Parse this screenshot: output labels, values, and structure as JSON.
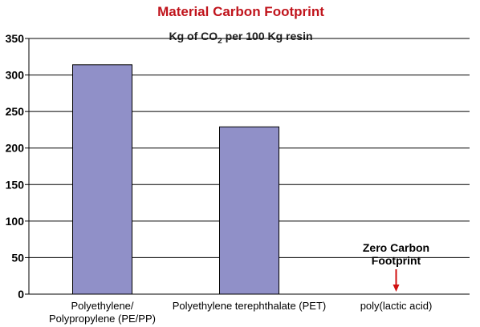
{
  "chart_data": {
    "type": "bar",
    "title": "Material Carbon Footprint",
    "subtitle": {
      "prefix": "Kg of CO",
      "subscript": "2",
      "suffix": " per 100 Kg resin"
    },
    "categories": [
      [
        "Polyethylene/",
        "Polypropylene (PE/PP)"
      ],
      [
        "Polyethylene terephthalate (PET)"
      ],
      [
        "poly(lactic acid)"
      ]
    ],
    "values": [
      314,
      229,
      0
    ],
    "ylim": [
      0,
      350
    ],
    "yticks": [
      0,
      50,
      100,
      150,
      200,
      250,
      300,
      350
    ],
    "xlabel": "",
    "ylabel": "",
    "grid": true,
    "annotation": {
      "lines": [
        "Zero Carbon",
        "Footprint"
      ],
      "category_index": 2
    },
    "colors": {
      "bar_fill": "#9090c8",
      "bar_stroke": "#000000",
      "title": "#c0141c",
      "grid": "#000000",
      "arrow": "#d01010"
    }
  }
}
